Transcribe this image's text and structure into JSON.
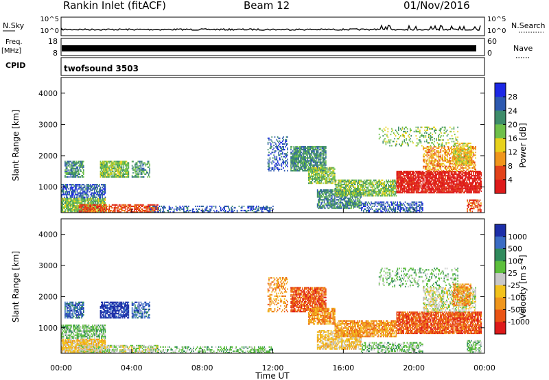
{
  "header": {
    "title": "Rankin Inlet (fitACF)",
    "beam": "Beam 12",
    "date": "01/Nov/2016"
  },
  "top_panels": {
    "nsky_label": "N.Sky",
    "nsky_ticks": [
      "10^5",
      "10^0"
    ],
    "nsearch_label": "N.Search",
    "nsearch_ticks": [
      "10^5",
      "10^0"
    ],
    "freq_label": "Freq.",
    "freq_unit": "[MHz]",
    "freq_ticks": [
      "18",
      "8"
    ],
    "nave_label": "Nave",
    "nave_ticks": [
      "60",
      "0"
    ],
    "cpid_label": "CPID",
    "cpid_value": "twofsound 3503"
  },
  "chart_data": [
    {
      "type": "heatmap",
      "title": "",
      "xlabel": "",
      "ylabel": "Slant Range [km]",
      "xlim": [
        0,
        24
      ],
      "ylim": [
        180,
        4500
      ],
      "ytick_labels": [
        "1000",
        "2000",
        "3000",
        "4000"
      ],
      "colorbar": {
        "label": "Power [dB]",
        "ticks": [
          "4",
          "8",
          "12",
          "16",
          "20",
          "24",
          "28"
        ],
        "colors": [
          "#1c28e6",
          "#2d59b0",
          "#3e8c6a",
          "#6fc04a",
          "#e8d21c",
          "#f0961c",
          "#e2421a",
          "#de1a1a"
        ]
      }
    },
    {
      "type": "heatmap",
      "title": "",
      "xlabel": "Time UT",
      "ylabel": "Slant Range [km]",
      "xlim": [
        0,
        24
      ],
      "ylim": [
        180,
        4500
      ],
      "xtick_labels": [
        "00:00",
        "04:00",
        "08:00",
        "12:00",
        "16:00",
        "20:00",
        "00:00"
      ],
      "ytick_labels": [
        "1000",
        "2000",
        "3000",
        "4000"
      ],
      "colorbar": {
        "label": "Velocity [m s⁻¹]",
        "ticks": [
          "1000",
          "500",
          "100",
          "25",
          "-25",
          "-100",
          "-500",
          "-1000"
        ],
        "colors": [
          "#1c2ea8",
          "#3a6cc4",
          "#2f8a5c",
          "#5cbf3c",
          "#c8c8c8",
          "#f2c21c",
          "#f0961c",
          "#ea5414",
          "#de1a1a"
        ]
      }
    }
  ]
}
